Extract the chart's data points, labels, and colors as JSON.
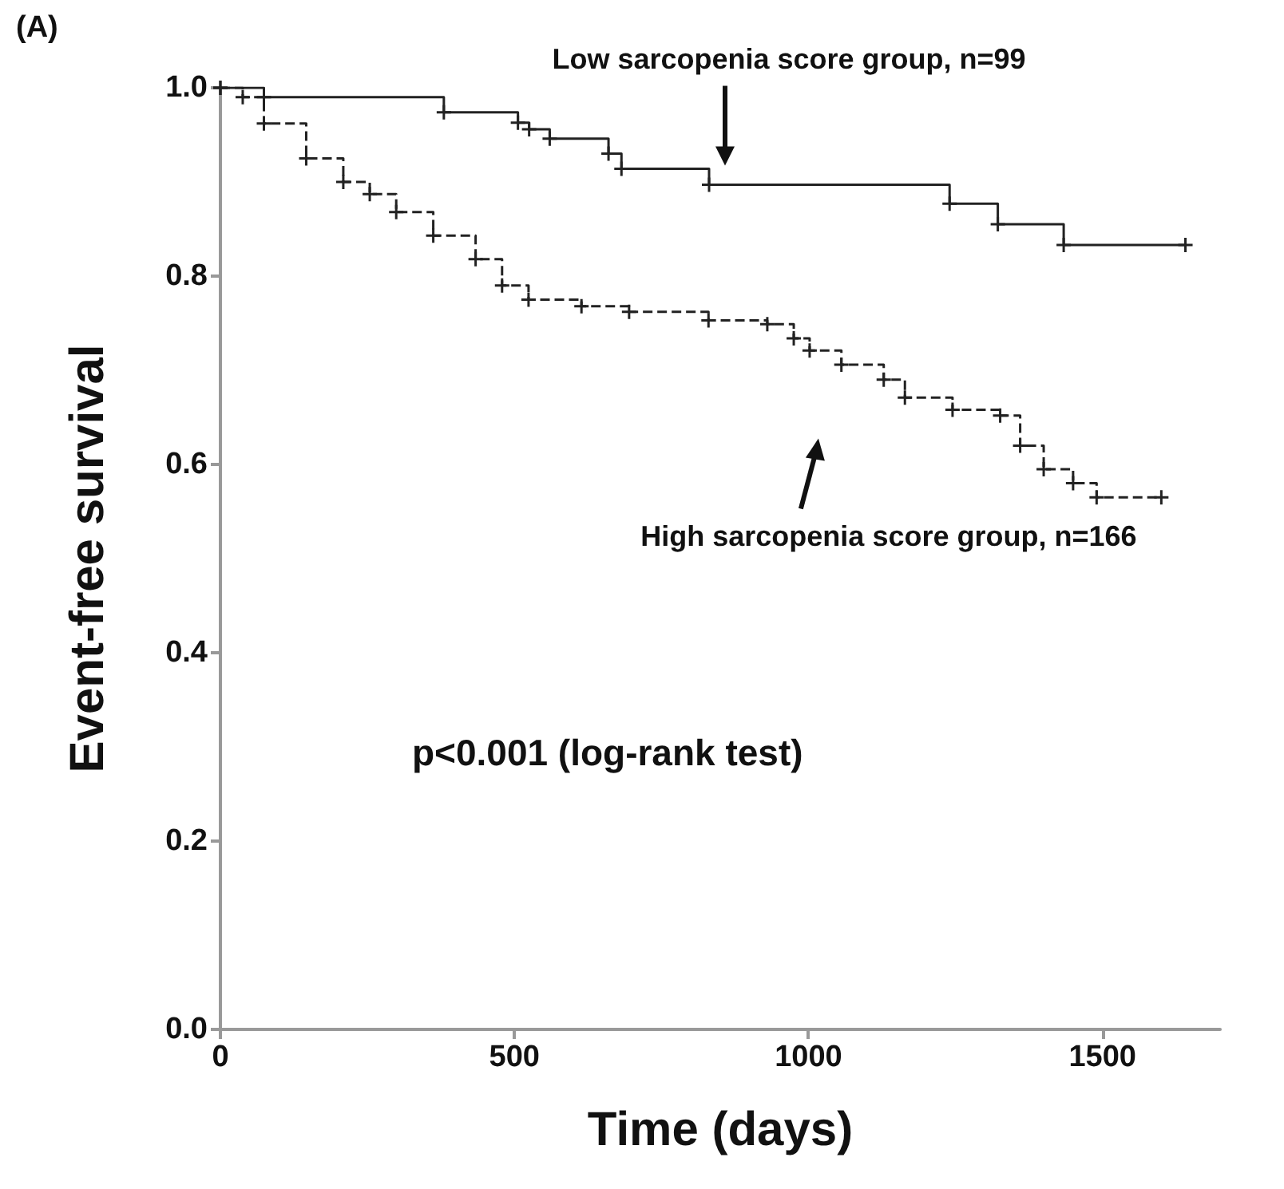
{
  "chart_data": {
    "type": "step",
    "xlabel": "Time (days)",
    "ylabel": "Event-free survival",
    "xlim": [
      0,
      1700
    ],
    "xticks": [
      0,
      500,
      1000,
      1500
    ],
    "ylim": [
      0,
      1.0
    ],
    "yticks": [
      {
        "value": 0,
        "label": "0.0"
      },
      {
        "value": 0.2,
        "label": "0.2"
      },
      {
        "value": 0.4,
        "label": "0.4"
      },
      {
        "value": 0.6,
        "label": "0.6"
      },
      {
        "value": 0.8,
        "label": "0.8"
      },
      {
        "value": 1.0,
        "label": "1.0"
      }
    ],
    "grid": false,
    "legend": false,
    "marker": "cross",
    "annotations": [
      "(A)",
      "p<0.001 (log-rank test)"
    ],
    "series": [
      {
        "name": "Low sarcopenia score group, n=99",
        "color": "#222222",
        "line_style": "solid",
        "x": [
          0,
          74,
          380,
          506,
          525,
          560,
          660,
          682,
          831,
          1240,
          1322,
          1434,
          1641
        ],
        "values": [
          1.0,
          0.99,
          0.974,
          0.963,
          0.956,
          0.946,
          0.93,
          0.914,
          0.897,
          0.877,
          0.855,
          0.833,
          0.833
        ]
      },
      {
        "name": "High sarcopenia score group, n=166",
        "color": "#222222",
        "line_style": "dashed",
        "x": [
          0,
          38,
          74,
          146,
          209,
          254,
          299,
          362,
          434,
          479,
          524,
          614,
          695,
          830,
          930,
          975,
          1002,
          1056,
          1128,
          1164,
          1245,
          1326,
          1360,
          1400,
          1450,
          1490,
          1600
        ],
        "values": [
          1.0,
          0.99,
          0.962,
          0.925,
          0.9,
          0.887,
          0.868,
          0.843,
          0.818,
          0.79,
          0.775,
          0.768,
          0.762,
          0.753,
          0.749,
          0.734,
          0.721,
          0.706,
          0.69,
          0.671,
          0.658,
          0.652,
          0.62,
          0.595,
          0.58,
          0.565,
          0.565
        ]
      }
    ]
  }
}
